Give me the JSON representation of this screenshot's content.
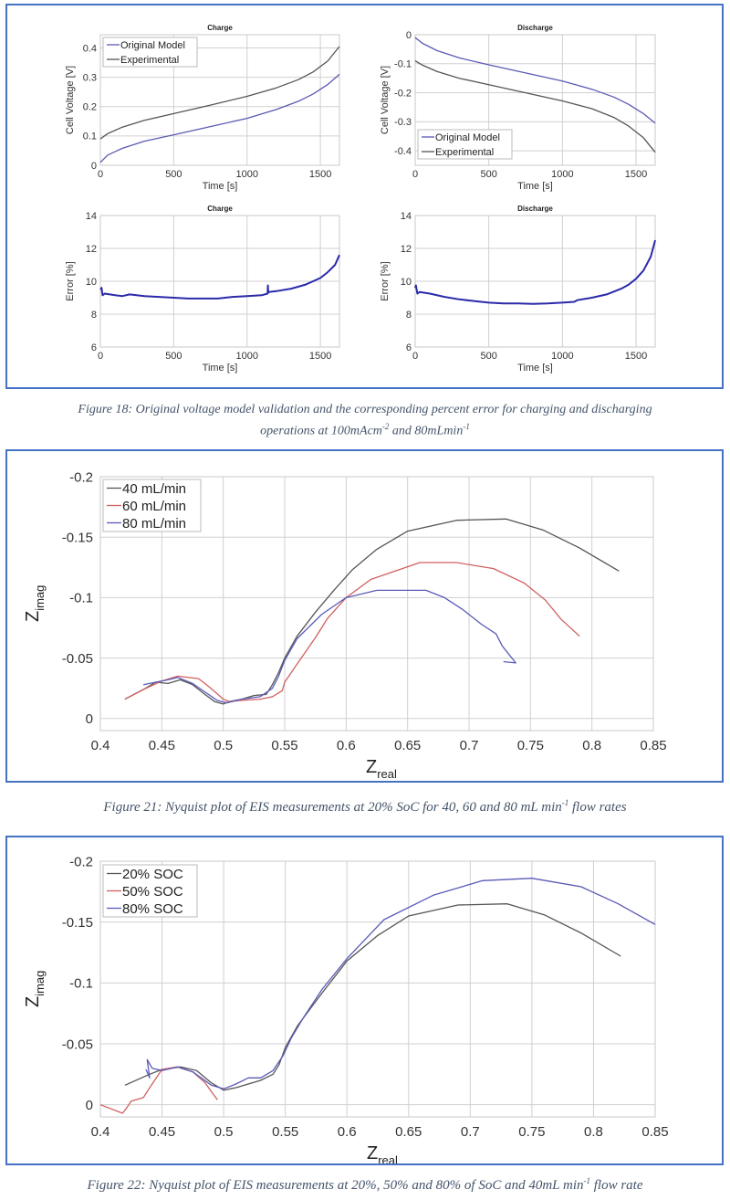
{
  "figure18": {
    "caption_main": "Figure 18: Original voltage model validation and the corresponding percent error for charging and discharging",
    "caption_line2_a": "operations at 100mAcm",
    "caption_sup1": "-2",
    "caption_line2_b": " and 80mLmin",
    "caption_sup2": "-1"
  },
  "figure21": {
    "caption_a": "Figure 21: Nyquist plot of EIS measurements at 20% SoC for 40, 60 and 80 mL min",
    "caption_sup": "-1",
    "caption_b": " flow rates"
  },
  "figure22": {
    "caption_a": "Figure 22: Nyquist plot of EIS measurements at 20%, 50% and 80% of SoC and 40mL min",
    "caption_sup": "-1",
    "caption_b": " flow rate"
  },
  "colors": {
    "frame": "#4472c4",
    "model": "#5a5ab4",
    "experimental": "#555555",
    "error": "#2a2aaa",
    "black_series": "#555555",
    "red_series": "#d06060",
    "blue_series": "#5a5ab8"
  },
  "chart_data": [
    {
      "id": "charge_voltage",
      "type": "line",
      "title": "Charge",
      "xlabel": "Time [s]",
      "ylabel": "Cell Voltage [V]",
      "xlim": [
        0,
        1630
      ],
      "ylim": [
        0,
        0.445
      ],
      "xticks": [
        0,
        500,
        1000,
        1500
      ],
      "xtick_labels": [
        "0",
        "500",
        "1000",
        "1500"
      ],
      "yticks": [
        0,
        0.1,
        0.2,
        0.3,
        0.4
      ],
      "ytick_labels": [
        "0",
        "0.1",
        "0.2",
        "0.3",
        "0.4"
      ],
      "grid": true,
      "legend": "top-left",
      "series": [
        {
          "name": "Original Model",
          "color_key": "model",
          "x": [
            0,
            50,
            150,
            300,
            500,
            750,
            1000,
            1200,
            1350,
            1450,
            1550,
            1630
          ],
          "y": [
            0.01,
            0.035,
            0.058,
            0.082,
            0.104,
            0.132,
            0.16,
            0.19,
            0.218,
            0.243,
            0.275,
            0.31
          ]
        },
        {
          "name": "Experimental",
          "color_key": "experimental",
          "x": [
            0,
            50,
            150,
            300,
            500,
            750,
            1000,
            1200,
            1350,
            1450,
            1550,
            1630
          ],
          "y": [
            0.09,
            0.108,
            0.13,
            0.153,
            0.176,
            0.205,
            0.235,
            0.264,
            0.292,
            0.318,
            0.355,
            0.405
          ]
        }
      ]
    },
    {
      "id": "discharge_voltage",
      "type": "line",
      "title": "Discharge",
      "xlabel": "Time [s]",
      "ylabel": "Cell Voltage [V]",
      "xlim": [
        0,
        1630
      ],
      "ylim": [
        -0.45,
        0.0
      ],
      "xticks": [
        0,
        500,
        1000,
        1500
      ],
      "xtick_labels": [
        "0",
        "500",
        "1000",
        "1500"
      ],
      "yticks": [
        0,
        -0.1,
        -0.2,
        -0.3,
        -0.4
      ],
      "ytick_labels": [
        "0",
        "-0.1",
        "-0.2",
        "-0.3",
        "-0.4"
      ],
      "grid": true,
      "legend": "bottom-left",
      "series": [
        {
          "name": "Original Model",
          "color_key": "model",
          "x": [
            0,
            50,
            150,
            300,
            500,
            750,
            1000,
            1200,
            1350,
            1450,
            1550,
            1630
          ],
          "y": [
            -0.01,
            -0.03,
            -0.055,
            -0.08,
            -0.104,
            -0.132,
            -0.16,
            -0.188,
            -0.215,
            -0.24,
            -0.272,
            -0.305
          ]
        },
        {
          "name": "Experimental",
          "color_key": "experimental",
          "x": [
            0,
            50,
            150,
            300,
            500,
            750,
            1000,
            1200,
            1350,
            1450,
            1550,
            1630
          ],
          "y": [
            -0.09,
            -0.105,
            -0.127,
            -0.15,
            -0.172,
            -0.2,
            -0.228,
            -0.255,
            -0.285,
            -0.315,
            -0.355,
            -0.405
          ]
        }
      ]
    },
    {
      "id": "charge_error",
      "type": "line",
      "title": "Charge",
      "xlabel": "Time [s]",
      "ylabel": "Error [%]",
      "xlim": [
        0,
        1630
      ],
      "ylim": [
        6,
        14
      ],
      "xticks": [
        0,
        500,
        1000,
        1500
      ],
      "xtick_labels": [
        "0",
        "500",
        "1000",
        "1500"
      ],
      "yticks": [
        6,
        8,
        10,
        12,
        14
      ],
      "ytick_labels": [
        "6",
        "8",
        "10",
        "12",
        "14"
      ],
      "grid": true,
      "series": [
        {
          "name": "Error",
          "color_key": "error",
          "x": [
            0,
            8,
            15,
            30,
            100,
            150,
            200,
            300,
            400,
            500,
            600,
            700,
            800,
            900,
            1000,
            1100,
            1140,
            1142,
            1145,
            1150,
            1200,
            1300,
            1400,
            1450,
            1500,
            1550,
            1600,
            1630
          ],
          "y": [
            9.5,
            9.6,
            9.15,
            9.25,
            9.15,
            9.1,
            9.2,
            9.1,
            9.05,
            9.0,
            8.95,
            8.95,
            8.95,
            9.05,
            9.1,
            9.15,
            9.25,
            9.75,
            9.3,
            9.35,
            9.4,
            9.55,
            9.8,
            10.0,
            10.2,
            10.55,
            11.0,
            11.6
          ]
        }
      ]
    },
    {
      "id": "discharge_error",
      "type": "line",
      "title": "Discharge",
      "xlabel": "Time [s]",
      "ylabel": "Error [%]",
      "xlim": [
        0,
        1630
      ],
      "ylim": [
        6,
        14
      ],
      "xticks": [
        0,
        500,
        1000,
        1500
      ],
      "xtick_labels": [
        "0",
        "500",
        "1000",
        "1500"
      ],
      "yticks": [
        6,
        8,
        10,
        12,
        14
      ],
      "ytick_labels": [
        "6",
        "8",
        "10",
        "12",
        "14"
      ],
      "grid": true,
      "series": [
        {
          "name": "Error",
          "color_key": "error",
          "x": [
            0,
            5,
            15,
            30,
            100,
            200,
            300,
            400,
            500,
            600,
            700,
            800,
            900,
            1000,
            1080,
            1100,
            1200,
            1300,
            1400,
            1450,
            1500,
            1550,
            1600,
            1630
          ],
          "y": [
            9.6,
            9.75,
            9.25,
            9.35,
            9.25,
            9.05,
            8.9,
            8.8,
            8.7,
            8.65,
            8.65,
            8.62,
            8.65,
            8.7,
            8.75,
            8.85,
            9.0,
            9.2,
            9.55,
            9.8,
            10.15,
            10.65,
            11.5,
            12.5
          ]
        }
      ]
    },
    {
      "id": "nyquist_flow_rates",
      "type": "line",
      "title": "",
      "xlabel": "Z_real",
      "ylabel": "Z_imag",
      "xlim": [
        0.4,
        0.85
      ],
      "ylim": [
        0.01,
        -0.2
      ],
      "xticks": [
        0.4,
        0.45,
        0.5,
        0.55,
        0.6,
        0.65,
        0.7,
        0.75,
        0.8,
        0.85
      ],
      "xtick_labels": [
        "0.4",
        "0.45",
        "0.5",
        "0.55",
        "0.6",
        "0.65",
        "0.7",
        "0.75",
        "0.8",
        "0.85"
      ],
      "yticks": [
        0,
        -0.05,
        -0.1,
        -0.15,
        -0.2
      ],
      "ytick_labels": [
        "0",
        "-0.05",
        "-0.1",
        "-0.15",
        "-0.2"
      ],
      "grid": true,
      "legend": "top-left",
      "series": [
        {
          "name": "40 mL/min",
          "color_key": "black_series",
          "x": [
            0.42,
            0.435,
            0.445,
            0.455,
            0.465,
            0.475,
            0.485,
            0.493,
            0.5,
            0.505,
            0.515,
            0.525,
            0.535,
            0.54,
            0.545,
            0.55,
            0.56,
            0.575,
            0.59,
            0.605,
            0.625,
            0.65,
            0.69,
            0.73,
            0.76,
            0.79,
            0.822
          ],
          "y": [
            -0.016,
            -0.024,
            -0.03,
            -0.029,
            -0.032,
            -0.028,
            -0.02,
            -0.014,
            -0.012,
            -0.014,
            -0.016,
            -0.019,
            -0.02,
            -0.028,
            -0.038,
            -0.05,
            -0.068,
            -0.088,
            -0.106,
            -0.123,
            -0.14,
            -0.155,
            -0.164,
            -0.165,
            -0.156,
            -0.141,
            -0.122
          ]
        },
        {
          "name": "60 mL/min",
          "color_key": "red_series",
          "x": [
            0.42,
            0.435,
            0.45,
            0.463,
            0.48,
            0.49,
            0.5,
            0.505,
            0.515,
            0.53,
            0.54,
            0.548,
            0.55,
            0.56,
            0.575,
            0.585,
            0.6,
            0.62,
            0.66,
            0.69,
            0.72,
            0.745,
            0.762,
            0.775,
            0.79
          ],
          "y": [
            -0.016,
            -0.024,
            -0.031,
            -0.035,
            -0.033,
            -0.025,
            -0.016,
            -0.014,
            -0.015,
            -0.016,
            -0.018,
            -0.023,
            -0.03,
            -0.045,
            -0.067,
            -0.083,
            -0.1,
            -0.115,
            -0.129,
            -0.129,
            -0.124,
            -0.112,
            -0.098,
            -0.082,
            -0.068
          ]
        },
        {
          "name": "80 mL/min",
          "color_key": "blue_series",
          "x": [
            0.435,
            0.445,
            0.455,
            0.463,
            0.475,
            0.485,
            0.495,
            0.503,
            0.515,
            0.53,
            0.54,
            0.545,
            0.55,
            0.56,
            0.58,
            0.6,
            0.625,
            0.665,
            0.68,
            0.695,
            0.71,
            0.722,
            0.727,
            0.738,
            0.728
          ],
          "y": [
            -0.028,
            -0.03,
            -0.032,
            -0.034,
            -0.029,
            -0.022,
            -0.015,
            -0.013,
            -0.016,
            -0.018,
            -0.025,
            -0.035,
            -0.048,
            -0.066,
            -0.086,
            -0.1,
            -0.106,
            -0.106,
            -0.1,
            -0.09,
            -0.078,
            -0.07,
            -0.06,
            -0.046,
            -0.047
          ]
        }
      ]
    },
    {
      "id": "nyquist_soc",
      "type": "line",
      "title": "",
      "xlabel": "Z_real",
      "ylabel": "Z_imag",
      "xlim": [
        0.4,
        0.85
      ],
      "ylim": [
        0.01,
        -0.2
      ],
      "xticks": [
        0.4,
        0.45,
        0.5,
        0.55,
        0.6,
        0.65,
        0.7,
        0.75,
        0.8,
        0.85
      ],
      "xtick_labels": [
        "0.4",
        "0.45",
        "0.5",
        "0.55",
        "0.6",
        "0.65",
        "0.7",
        "0.75",
        "0.8",
        "0.85"
      ],
      "yticks": [
        0,
        -0.05,
        -0.1,
        -0.15,
        -0.2
      ],
      "ytick_labels": [
        "0",
        "-0.05",
        "-0.1",
        "-0.15",
        "-0.2"
      ],
      "grid": true,
      "legend": "top-left",
      "series": [
        {
          "name": "20% SOC",
          "color_key": "black_series",
          "x": [
            0.42,
            0.44,
            0.45,
            0.465,
            0.478,
            0.49,
            0.5,
            0.51,
            0.52,
            0.53,
            0.54,
            0.545,
            0.55,
            0.56,
            0.58,
            0.6,
            0.625,
            0.65,
            0.69,
            0.73,
            0.76,
            0.79,
            0.822
          ],
          "y": [
            -0.016,
            -0.025,
            -0.029,
            -0.031,
            -0.028,
            -0.018,
            -0.012,
            -0.014,
            -0.017,
            -0.02,
            -0.025,
            -0.033,
            -0.047,
            -0.065,
            -0.092,
            -0.118,
            -0.139,
            -0.155,
            -0.164,
            -0.165,
            -0.156,
            -0.141,
            -0.122
          ]
        },
        {
          "name": "50% SOC",
          "color_key": "red_series",
          "x": [
            0.4,
            0.418,
            0.421,
            0.425,
            0.435,
            0.44,
            0.45,
            0.462,
            0.475,
            0.485,
            0.492,
            0.495
          ],
          "y": [
            0.0,
            0.007,
            0.003,
            -0.003,
            -0.006,
            -0.014,
            -0.029,
            -0.031,
            -0.027,
            -0.018,
            -0.008,
            -0.004
          ]
        },
        {
          "name": "80% SOC",
          "color_key": "blue_series",
          "x": [
            0.437,
            0.44,
            0.438,
            0.442,
            0.45,
            0.463,
            0.475,
            0.49,
            0.5,
            0.51,
            0.52,
            0.53,
            0.54,
            0.548,
            0.555,
            0.565,
            0.58,
            0.6,
            0.63,
            0.67,
            0.71,
            0.75,
            0.79,
            0.82,
            0.85
          ],
          "y": [
            -0.029,
            -0.022,
            -0.037,
            -0.03,
            -0.028,
            -0.031,
            -0.027,
            -0.016,
            -0.013,
            -0.017,
            -0.022,
            -0.022,
            -0.028,
            -0.04,
            -0.055,
            -0.072,
            -0.095,
            -0.12,
            -0.152,
            -0.172,
            -0.184,
            -0.186,
            -0.179,
            -0.165,
            -0.148
          ]
        }
      ]
    }
  ]
}
